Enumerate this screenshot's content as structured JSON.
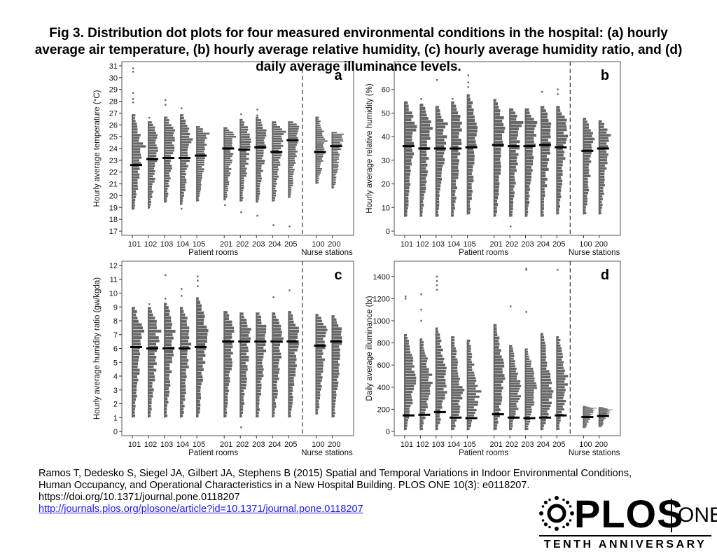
{
  "title": "Fig 3. Distribution dot plots for four measured environmental conditions in the hospital: (a) hourly average air temperature, (b) hourly average relative humidity, (c) hourly average humidity ratio, and (d) daily average illuminance levels.",
  "citation": {
    "line1": "Ramos T, Dedesko S, Siegel JA, Gilbert JA, Stephens B (2015) Spatial and Temporal Variations in Indoor Environmental Conditions,",
    "line2": "Human Occupancy, and Operational Characteristics in a New Hospital Building. PLOS ONE 10(3): e0118207.",
    "doi": "https://doi.org/10.1371/journal.pone.0118207",
    "link": "http://journals.plos.org/plosone/article?id=10.1371/journal.pone.0118207"
  },
  "logo": {
    "word": "PLOS",
    "one": "ONE",
    "tagline": "TENTH ANNIVERSARY"
  },
  "chart_data": [
    {
      "panel": "a",
      "type": "scatter",
      "subtype": "distribution dot plot",
      "ylabel": "Hourly average temperature (°C)",
      "ylim": [
        17,
        31
      ],
      "yticks": [
        17,
        18,
        19,
        20,
        21,
        22,
        23,
        24,
        25,
        26,
        27,
        28,
        29,
        30,
        31
      ],
      "categories": [
        "101",
        "102",
        "103",
        "104",
        "105",
        "201",
        "202",
        "203",
        "204",
        "205",
        "100",
        "200"
      ],
      "groups": [
        {
          "label": "Patient rooms",
          "categories": [
            "101",
            "102",
            "103",
            "104",
            "105",
            "201",
            "202",
            "203",
            "204",
            "205"
          ]
        },
        {
          "label": "Nurse stations",
          "categories": [
            "100",
            "200"
          ]
        }
      ],
      "median": [
        22.6,
        23.1,
        23.2,
        23.2,
        23.4,
        24.0,
        23.9,
        24.1,
        23.7,
        24.7,
        23.7,
        24.2
      ],
      "min": [
        18.8,
        18.9,
        19.4,
        19.2,
        19.5,
        19.6,
        19.5,
        19.4,
        19.5,
        19.8,
        21.0,
        20.6
      ],
      "max": [
        26.9,
        26.3,
        26.7,
        26.9,
        25.9,
        25.8,
        26.5,
        26.7,
        26.3,
        26.3,
        26.7,
        25.4
      ],
      "upper": [
        24.2,
        25.3,
        25.4,
        25.3,
        25.3,
        25.3,
        25.3,
        25.4,
        25.4,
        25.9,
        24.9,
        25.2
      ],
      "outliers": [
        [
          30.8,
          30.5,
          28.7,
          28.2,
          27.9,
          19.5
        ],
        [
          26.6
        ],
        [
          28.1,
          27.7
        ],
        [
          27.4,
          18.9
        ],
        [],
        [
          19.2
        ],
        [
          26.9,
          26.0,
          18.6
        ],
        [
          27.3,
          26.8,
          18.3
        ],
        [
          17.5
        ],
        [
          17.4
        ],
        [],
        []
      ]
    },
    {
      "panel": "b",
      "type": "scatter",
      "subtype": "distribution dot plot",
      "ylabel": "Hourly average relative humidity (%)",
      "ylim": [
        0,
        70
      ],
      "yticks": [
        0,
        10,
        20,
        30,
        40,
        50,
        60
      ],
      "categories": [
        "101",
        "102",
        "103",
        "104",
        "105",
        "201",
        "202",
        "203",
        "204",
        "205",
        "100",
        "200"
      ],
      "groups": [
        {
          "label": "Patient rooms",
          "categories": [
            "101",
            "102",
            "103",
            "104",
            "105",
            "201",
            "202",
            "203",
            "204",
            "205"
          ]
        },
        {
          "label": "Nurse stations",
          "categories": [
            "100",
            "200"
          ]
        }
      ],
      "median": [
        36,
        35,
        35,
        35,
        35.5,
        36.5,
        36,
        36,
        36.5,
        35.5,
        34,
        35
      ],
      "min": [
        6,
        6,
        6,
        6,
        7,
        6,
        6,
        6,
        6,
        7,
        7,
        7
      ],
      "max": [
        55,
        54,
        53,
        55,
        58,
        56,
        52,
        52,
        53,
        53,
        48,
        47
      ],
      "upper": [
        46,
        46,
        46,
        46,
        46,
        46,
        46,
        46,
        46,
        46,
        40,
        41
      ],
      "outliers": [
        [],
        [
          56
        ],
        [
          64
        ],
        [
          56
        ],
        [
          66,
          63,
          61
        ],
        [],
        [
          2
        ],
        [],
        [
          59
        ],
        [
          60,
          58
        ],
        [],
        []
      ]
    },
    {
      "panel": "c",
      "type": "scatter",
      "subtype": "distribution dot plot",
      "ylabel": "Hourly average humidity ratio (gw/kgda)",
      "ylim": [
        0,
        12
      ],
      "yticks": [
        0,
        1,
        2,
        3,
        4,
        5,
        6,
        7,
        8,
        9,
        10,
        11,
        12
      ],
      "categories": [
        "101",
        "102",
        "103",
        "104",
        "105",
        "201",
        "202",
        "203",
        "204",
        "205",
        "100",
        "200"
      ],
      "groups": [
        {
          "label": "Patient rooms",
          "categories": [
            "101",
            "102",
            "103",
            "104",
            "105",
            "201",
            "202",
            "203",
            "204",
            "205"
          ]
        },
        {
          "label": "Nurse stations",
          "categories": [
            "100",
            "200"
          ]
        }
      ],
      "median": [
        6.1,
        6.0,
        6.0,
        6.0,
        6.1,
        6.5,
        6.5,
        6.5,
        6.5,
        6.5,
        6.2,
        6.5
      ],
      "min": [
        1.0,
        1.0,
        1.0,
        1.0,
        1.0,
        1.0,
        1.0,
        1.0,
        1.0,
        1.0,
        1.2,
        1.0
      ],
      "max": [
        9.0,
        9.0,
        9.3,
        9.0,
        9.7,
        8.7,
        8.6,
        8.6,
        8.6,
        8.7,
        8.5,
        8.4
      ],
      "upper": [
        7.5,
        7.4,
        7.4,
        7.4,
        7.5,
        7.4,
        7.4,
        7.4,
        7.4,
        7.4,
        7.4,
        7.4
      ],
      "outliers": [
        [],
        [
          9.2
        ],
        [
          11.3,
          9.6
        ],
        [
          10.3,
          9.8
        ],
        [
          11.2,
          10.9,
          10.5
        ],
        [],
        [
          0.3
        ],
        [],
        [
          9.7
        ],
        [
          10.2
        ],
        [],
        []
      ]
    },
    {
      "panel": "d",
      "type": "scatter",
      "subtype": "distribution dot plot",
      "ylabel": "Daily average illuminance (lx)",
      "ylim": [
        0,
        1500
      ],
      "yticks": [
        0,
        200,
        400,
        600,
        800,
        1000,
        1200,
        1400
      ],
      "categories": [
        "101",
        "102",
        "103",
        "104",
        "105",
        "201",
        "202",
        "203",
        "204",
        "205",
        "100",
        "200"
      ],
      "groups": [
        {
          "label": "Patient rooms",
          "categories": [
            "101",
            "102",
            "103",
            "104",
            "105",
            "201",
            "202",
            "203",
            "204",
            "205"
          ]
        },
        {
          "label": "Nurse stations",
          "categories": [
            "100",
            "200"
          ]
        }
      ],
      "median": [
        145,
        150,
        175,
        125,
        120,
        155,
        125,
        120,
        125,
        145,
        130,
        140
      ],
      "min": [
        10,
        10,
        10,
        10,
        10,
        10,
        10,
        10,
        10,
        10,
        30,
        40
      ],
      "max": [
        880,
        840,
        940,
        860,
        830,
        970,
        780,
        750,
        890,
        860,
        230,
        220
      ],
      "upper": [
        560,
        520,
        540,
        400,
        360,
        560,
        440,
        450,
        400,
        520,
        210,
        200
      ],
      "outliers": [
        [
          1220,
          1200
        ],
        [
          1240,
          1100,
          1000
        ],
        [
          1400,
          1360,
          1320,
          1280
        ],
        [],
        [],
        [],
        [
          1130
        ],
        [
          1470,
          1460,
          1080
        ],
        [],
        [
          1460
        ],
        [],
        []
      ]
    }
  ]
}
